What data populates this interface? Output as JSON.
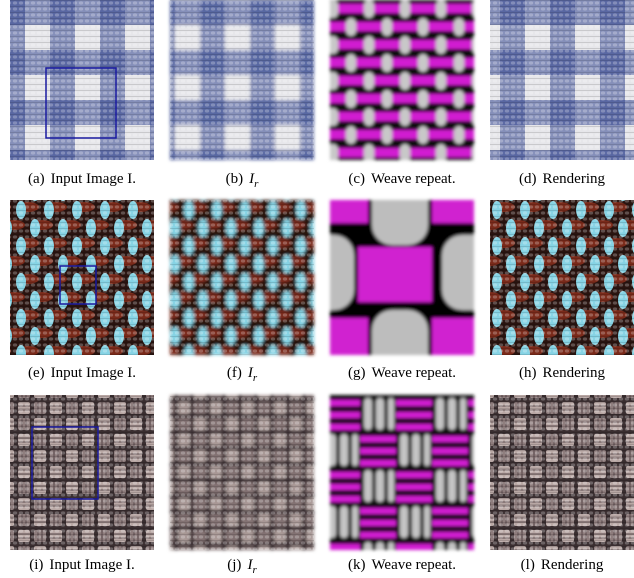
{
  "figure": {
    "rows": [
      {
        "panels": [
          {
            "label": "(a)",
            "caption": "Input Image I."
          },
          {
            "label": "(b)",
            "symbol": "I",
            "subscript": "r"
          },
          {
            "label": "(c)",
            "caption": "Weave repeat."
          },
          {
            "label": "(d)",
            "caption": "Rendering"
          }
        ]
      },
      {
        "panels": [
          {
            "label": "(e)",
            "caption": "Input Image I."
          },
          {
            "label": "(f)",
            "symbol": "I",
            "subscript": "r"
          },
          {
            "label": "(g)",
            "caption": "Weave repeat."
          },
          {
            "label": "(h)",
            "caption": "Rendering"
          }
        ]
      },
      {
        "panels": [
          {
            "label": "(i)",
            "caption": "Input Image I."
          },
          {
            "label": "(j)",
            "symbol": "I",
            "subscript": "r"
          },
          {
            "label": "(k)",
            "caption": "Weave repeat."
          },
          {
            "label": "(l)",
            "caption": "Rendering"
          }
        ]
      }
    ]
  }
}
